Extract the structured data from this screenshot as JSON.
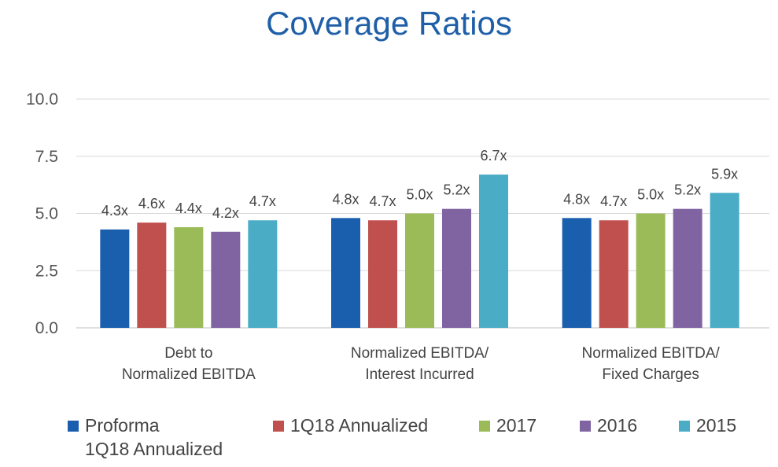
{
  "chart_data": {
    "type": "bar",
    "title": "Coverage Ratios",
    "categories": [
      [
        "Debt to",
        "Normalized EBITDA"
      ],
      [
        "Normalized EBITDA/",
        "Interest Incurred"
      ],
      [
        "Normalized EBITDA/",
        "Fixed Charges"
      ]
    ],
    "series": [
      {
        "name": "Proforma 1Q18 Annualized",
        "legend_lines": [
          "Proforma",
          "1Q18 Annualized"
        ],
        "color": "#1a5eae",
        "values": [
          4.3,
          4.8,
          4.8
        ],
        "labels": [
          "4.3x",
          "4.8x",
          "4.8x"
        ]
      },
      {
        "name": "1Q18 Annualized",
        "legend_lines": [
          "1Q18 Annualized"
        ],
        "color": "#c0504d",
        "values": [
          4.6,
          4.7,
          4.7
        ],
        "labels": [
          "4.6x",
          "4.7x",
          "4.7x"
        ]
      },
      {
        "name": "2017",
        "legend_lines": [
          "2017"
        ],
        "color": "#9bbb59",
        "values": [
          4.4,
          5.0,
          5.0
        ],
        "labels": [
          "4.4x",
          "5.0x",
          "5.0x"
        ]
      },
      {
        "name": "2016",
        "legend_lines": [
          "2016"
        ],
        "color": "#8064a2",
        "values": [
          4.2,
          5.2,
          5.2
        ],
        "labels": [
          "4.2x",
          "5.2x",
          "5.2x"
        ]
      },
      {
        "name": "2015",
        "legend_lines": [
          "2015"
        ],
        "color": "#4bacc6",
        "values": [
          4.7,
          6.7,
          5.9
        ],
        "labels": [
          "4.7x",
          "6.7x",
          "5.9x"
        ]
      }
    ],
    "ylim": [
      0,
      10
    ],
    "yticks": [
      "0.0",
      "2.5",
      "5.0",
      "7.5",
      "10.0"
    ],
    "grid": true,
    "legend_position": "bottom"
  }
}
